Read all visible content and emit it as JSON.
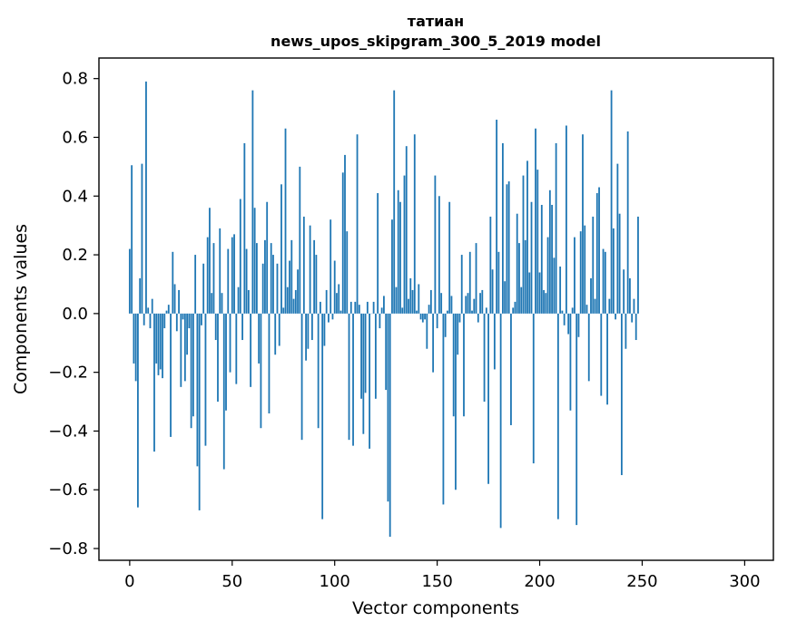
{
  "chart_data": {
    "type": "bar",
    "title_line1": "татиан",
    "title_line2": "news_upos_skipgram_300_5_2019 model",
    "xlabel": "Vector components",
    "ylabel": "Components values",
    "xlim": [
      -15,
      314
    ],
    "ylim": [
      -0.84,
      0.87
    ],
    "xticks": [
      0,
      50,
      100,
      150,
      200,
      250,
      300
    ],
    "yticks": [
      -0.8,
      -0.6,
      -0.4,
      -0.2,
      0.0,
      0.2,
      0.4,
      0.6,
      0.8
    ],
    "ytick_labels": [
      "−0.8",
      "−0.6",
      "−0.4",
      "−0.2",
      "0.0",
      "0.2",
      "0.4",
      "0.6",
      "0.8"
    ],
    "bar_color": "#1f77b4",
    "values": [
      0.22,
      0.505,
      -0.17,
      -0.23,
      -0.66,
      0.12,
      0.51,
      -0.04,
      0.79,
      0.02,
      -0.05,
      0.05,
      -0.47,
      -0.17,
      -0.21,
      -0.19,
      -0.22,
      -0.05,
      0.01,
      0.03,
      -0.42,
      0.21,
      0.1,
      -0.06,
      0.08,
      -0.25,
      -0.02,
      -0.23,
      -0.14,
      -0.05,
      -0.39,
      -0.35,
      0.2,
      -0.52,
      -0.67,
      -0.04,
      0.17,
      -0.45,
      0.26,
      0.36,
      0.07,
      0.24,
      -0.09,
      -0.3,
      0.29,
      0.07,
      -0.53,
      -0.33,
      0.22,
      -0.2,
      0.26,
      0.27,
      -0.24,
      0.09,
      0.39,
      -0.09,
      0.58,
      0.22,
      0.08,
      -0.25,
      0.76,
      0.36,
      0.24,
      -0.17,
      -0.39,
      0.17,
      0.25,
      0.38,
      -0.34,
      0.24,
      0.2,
      -0.14,
      0.17,
      -0.11,
      0.44,
      0.02,
      0.63,
      0.09,
      0.18,
      0.25,
      0.05,
      0.08,
      0.15,
      0.5,
      -0.43,
      0.33,
      -0.16,
      -0.12,
      0.3,
      -0.09,
      0.25,
      0.2,
      -0.39,
      0.04,
      -0.7,
      -0.11,
      0.08,
      -0.03,
      0.32,
      -0.02,
      0.18,
      0.07,
      0.1,
      0.01,
      0.48,
      0.54,
      0.28,
      -0.43,
      0.04,
      -0.45,
      0.04,
      0.61,
      0.03,
      -0.29,
      -0.41,
      -0.27,
      0.04,
      -0.46,
      0.0,
      0.04,
      -0.29,
      0.41,
      -0.05,
      0.02,
      0.06,
      -0.26,
      -0.64,
      -0.76,
      0.32,
      0.76,
      0.09,
      0.42,
      0.38,
      0.02,
      0.47,
      0.57,
      0.05,
      0.12,
      0.08,
      0.61,
      0.01,
      0.1,
      -0.02,
      -0.03,
      -0.02,
      -0.12,
      0.03,
      0.08,
      -0.2,
      0.47,
      -0.05,
      0.4,
      0.07,
      -0.65,
      -0.08,
      0.01,
      0.38,
      0.06,
      -0.35,
      -0.6,
      -0.14,
      -0.03,
      0.2,
      -0.35,
      0.06,
      0.07,
      0.21,
      0.01,
      0.05,
      0.24,
      -0.03,
      0.07,
      0.08,
      -0.3,
      0.02,
      -0.58,
      0.33,
      0.15,
      -0.19,
      0.66,
      0.21,
      -0.73,
      0.58,
      0.11,
      0.44,
      0.45,
      -0.38,
      0.02,
      0.04,
      0.34,
      0.24,
      0.09,
      0.47,
      0.25,
      0.52,
      0.14,
      0.38,
      -0.51,
      0.63,
      0.49,
      0.14,
      0.37,
      0.08,
      0.07,
      0.26,
      0.42,
      0.37,
      0.19,
      0.58,
      -0.7,
      0.16,
      0.01,
      -0.04,
      0.64,
      -0.07,
      -0.33,
      0.02,
      0.26,
      -0.72,
      -0.08,
      0.28,
      0.61,
      0.3,
      0.03,
      -0.23,
      0.12,
      0.33,
      0.05,
      0.41,
      0.43,
      -0.28,
      0.22,
      0.21,
      -0.31,
      0.05,
      0.76,
      0.29,
      -0.02,
      0.51,
      0.34,
      -0.55,
      0.15,
      -0.12,
      0.62,
      0.12,
      -0.03,
      0.05,
      -0.09,
      0.33
    ]
  }
}
